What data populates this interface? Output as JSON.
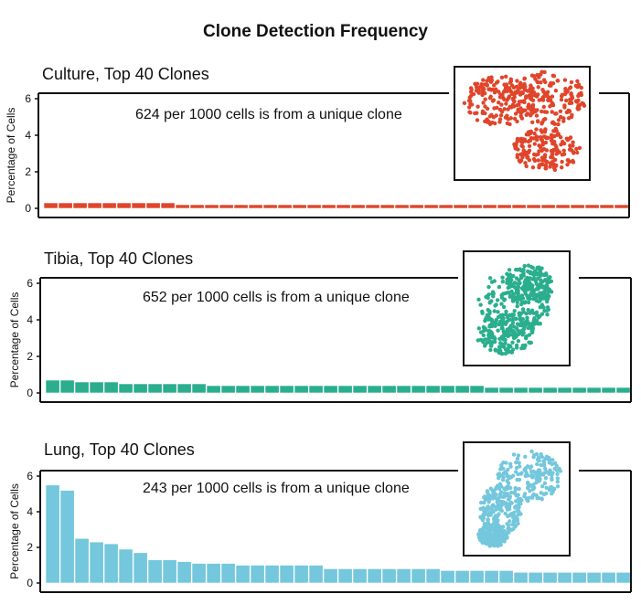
{
  "title": "Clone Detection Frequency",
  "chart_data": [
    {
      "type": "bar",
      "title": "Culture, Top 40 Clones",
      "annotation": "624 per 1000 cells is from a unique clone",
      "ylabel": "Percentage of Cells",
      "ylim": [
        0,
        6
      ],
      "yticks": [
        0,
        2,
        4,
        6
      ],
      "color": "#e0452b",
      "x": [
        1,
        2,
        3,
        4,
        5,
        6,
        7,
        8,
        9,
        10,
        11,
        12,
        13,
        14,
        15,
        16,
        17,
        18,
        19,
        20,
        21,
        22,
        23,
        24,
        25,
        26,
        27,
        28,
        29,
        30,
        31,
        32,
        33,
        34,
        35,
        36,
        37,
        38,
        39,
        40
      ],
      "values": [
        0.3,
        0.3,
        0.3,
        0.3,
        0.3,
        0.3,
        0.3,
        0.3,
        0.3,
        0.2,
        0.2,
        0.2,
        0.2,
        0.2,
        0.2,
        0.2,
        0.2,
        0.2,
        0.2,
        0.2,
        0.2,
        0.2,
        0.2,
        0.2,
        0.2,
        0.2,
        0.2,
        0.2,
        0.2,
        0.2,
        0.2,
        0.2,
        0.2,
        0.2,
        0.2,
        0.2,
        0.2,
        0.2,
        0.2,
        0.2
      ]
    },
    {
      "type": "bar",
      "title": "Tibia, Top 40 Clones",
      "annotation": "652 per 1000 cells is from a unique clone",
      "ylabel": "Percentage of Cells",
      "ylim": [
        0,
        6
      ],
      "yticks": [
        0,
        2,
        4,
        6
      ],
      "color": "#2aae8e",
      "x": [
        1,
        2,
        3,
        4,
        5,
        6,
        7,
        8,
        9,
        10,
        11,
        12,
        13,
        14,
        15,
        16,
        17,
        18,
        19,
        20,
        21,
        22,
        23,
        24,
        25,
        26,
        27,
        28,
        29,
        30,
        31,
        32,
        33,
        34,
        35,
        36,
        37,
        38,
        39,
        40
      ],
      "values": [
        0.7,
        0.7,
        0.6,
        0.6,
        0.6,
        0.5,
        0.5,
        0.5,
        0.5,
        0.5,
        0.5,
        0.4,
        0.4,
        0.4,
        0.4,
        0.4,
        0.4,
        0.4,
        0.4,
        0.4,
        0.4,
        0.4,
        0.4,
        0.4,
        0.4,
        0.4,
        0.4,
        0.4,
        0.4,
        0.4,
        0.3,
        0.3,
        0.3,
        0.3,
        0.3,
        0.3,
        0.3,
        0.3,
        0.3,
        0.3
      ]
    },
    {
      "type": "bar",
      "title": "Lung, Top 40 Clones",
      "annotation": "243 per 1000 cells is from a unique clone",
      "ylabel": "Percentage of Cells",
      "ylim": [
        0,
        6
      ],
      "yticks": [
        0,
        2,
        4,
        6
      ],
      "color": "#74c7dc",
      "x": [
        1,
        2,
        3,
        4,
        5,
        6,
        7,
        8,
        9,
        10,
        11,
        12,
        13,
        14,
        15,
        16,
        17,
        18,
        19,
        20,
        21,
        22,
        23,
        24,
        25,
        26,
        27,
        28,
        29,
        30,
        31,
        32,
        33,
        34,
        35,
        36,
        37,
        38,
        39,
        40
      ],
      "values": [
        5.5,
        5.2,
        2.5,
        2.3,
        2.2,
        1.9,
        1.7,
        1.3,
        1.3,
        1.2,
        1.1,
        1.1,
        1.1,
        1.0,
        1.0,
        1.0,
        1.0,
        1.0,
        1.0,
        0.8,
        0.8,
        0.8,
        0.8,
        0.8,
        0.8,
        0.8,
        0.8,
        0.7,
        0.7,
        0.7,
        0.7,
        0.7,
        0.6,
        0.6,
        0.6,
        0.6,
        0.6,
        0.6,
        0.6,
        0.6
      ]
    }
  ]
}
